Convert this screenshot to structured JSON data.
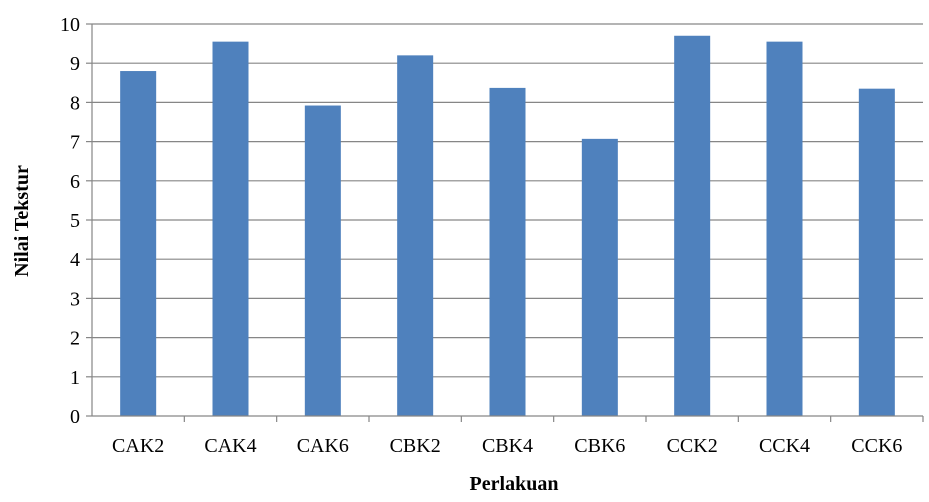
{
  "chart_data": {
    "type": "bar",
    "title": "",
    "xlabel": "Perlakuan",
    "ylabel": "Nilai Tekstur",
    "categories": [
      "CAK2",
      "CAK4",
      "CAK6",
      "CBK2",
      "CBK4",
      "CBK6",
      "CCK2",
      "CCK4",
      "CCK6"
    ],
    "values": [
      8.8,
      9.55,
      7.92,
      9.2,
      8.37,
      7.07,
      9.7,
      9.55,
      8.35
    ],
    "ylim": [
      0,
      10
    ],
    "yticks": [
      "0",
      "1",
      "2",
      "3",
      "4",
      "5",
      "6",
      "7",
      "8",
      "9",
      "10"
    ],
    "grid": true,
    "legend": "none",
    "bar_color": "#4f81bd",
    "grid_color": "#868686"
  }
}
